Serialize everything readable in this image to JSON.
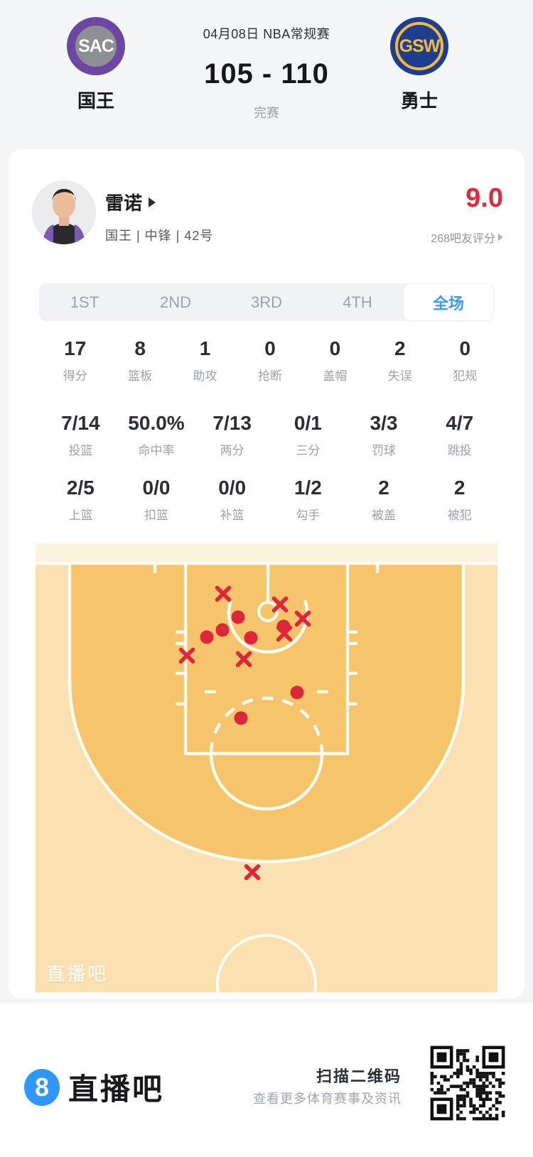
{
  "scoreboard": {
    "date_title": "04月08日 NBA常规赛",
    "score": "105 - 110",
    "status": "完赛",
    "home": {
      "abbr": "SAC",
      "name": "国王"
    },
    "away": {
      "abbr": "GSW",
      "name": "勇士"
    }
  },
  "player": {
    "name": "雷诺",
    "info": "国王 | 中锋 | 42号",
    "rating": "9.0",
    "rating_note": "268吧友评分"
  },
  "tabs": [
    {
      "label": "1ST",
      "active": false
    },
    {
      "label": "2ND",
      "active": false
    },
    {
      "label": "3RD",
      "active": false
    },
    {
      "label": "4TH",
      "active": false
    },
    {
      "label": "全场",
      "active": true
    }
  ],
  "stats": {
    "rows": [
      [
        {
          "value": "17",
          "label": "得分"
        },
        {
          "value": "8",
          "label": "篮板"
        },
        {
          "value": "1",
          "label": "助攻"
        },
        {
          "value": "0",
          "label": "抢断"
        },
        {
          "value": "0",
          "label": "盖帽"
        },
        {
          "value": "2",
          "label": "失误"
        },
        {
          "value": "0",
          "label": "犯规"
        }
      ],
      [
        {
          "value": "7/14",
          "label": "投篮"
        },
        {
          "value": "50.0%",
          "label": "命中率"
        },
        {
          "value": "7/13",
          "label": "两分"
        },
        {
          "value": "0/1",
          "label": "三分"
        },
        {
          "value": "3/3",
          "label": "罚球"
        },
        {
          "value": "4/7",
          "label": "跳投"
        }
      ],
      [
        {
          "value": "2/5",
          "label": "上篮"
        },
        {
          "value": "0/0",
          "label": "扣篮"
        },
        {
          "value": "0/0",
          "label": "补篮"
        },
        {
          "value": "1/2",
          "label": "勾手"
        },
        {
          "value": "2",
          "label": "被盖"
        },
        {
          "value": "2",
          "label": "被犯"
        }
      ]
    ]
  },
  "chart_data": {
    "type": "scatter",
    "title": "shot chart (half court, basket at top)",
    "legend": {
      "made": "red dot",
      "missed": "red x"
    },
    "made_xy": [
      [
        285,
        104
      ],
      [
        263,
        122
      ],
      [
        241,
        132
      ],
      [
        303,
        133
      ],
      [
        349,
        117
      ],
      [
        368,
        210
      ],
      [
        289,
        246
      ]
    ],
    "missed_xy": [
      [
        264,
        71
      ],
      [
        344,
        86
      ],
      [
        376,
        106
      ],
      [
        350,
        127
      ],
      [
        213,
        158
      ],
      [
        293,
        163
      ],
      [
        305,
        463
      ]
    ],
    "totals": {
      "made": 7,
      "attempts": 14,
      "threes": "0/1"
    },
    "watermark": "直播吧"
  },
  "footer": {
    "brand": "直播吧",
    "logo_glyph": "8",
    "qr_title": "扫描二维码",
    "qr_subtitle": "查看更多体育赛事及资讯"
  },
  "colors": {
    "page_bg": "#F4F5F7",
    "accent_blue": "#3B9BF2",
    "rating_red": "#E5273B",
    "mark_red": "#DF2539",
    "court_top_band": "#FCF3DD",
    "court_outside_3pt": "#FBE1B1",
    "court_inside_3pt": "#F6C46B",
    "court_line": "#FFFCF2",
    "sac_purple": "#6B46A3",
    "gsw_navy": "#1E3E8F",
    "gsw_gold": "#F5B940",
    "footer_blue": "#2D97FC"
  }
}
